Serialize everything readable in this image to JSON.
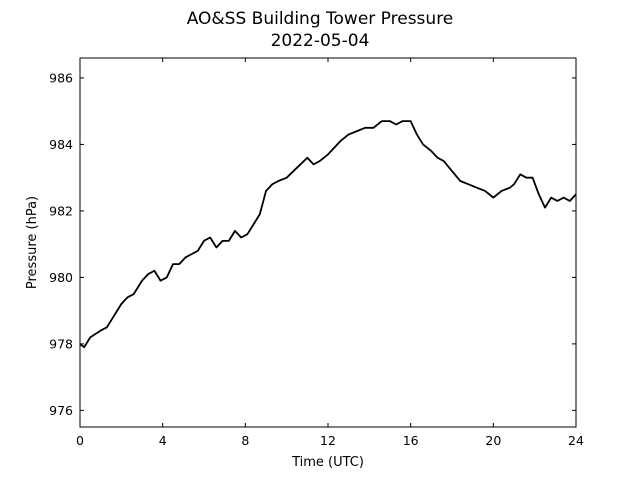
{
  "chart_data": {
    "type": "line",
    "title": "AO&SS Building Tower Pressure",
    "subtitle": "2022-05-04",
    "xlabel": "Time (UTC)",
    "ylabel": "Pressure (hPa)",
    "xlim": [
      0,
      24
    ],
    "ylim": [
      975.5,
      986.6
    ],
    "xticks": [
      0,
      4,
      8,
      12,
      16,
      20,
      24
    ],
    "yticks": [
      976,
      978,
      980,
      982,
      984,
      986
    ],
    "grid": false,
    "line_color": "#000000",
    "series": [
      {
        "x": [
          0,
          0.2,
          0.5,
          1,
          1.3,
          1.6,
          2,
          2.3,
          2.6,
          3,
          3.3,
          3.6,
          3.9,
          4.2,
          4.5,
          4.8,
          5.1,
          5.4,
          5.7,
          6,
          6.3,
          6.6,
          6.9,
          7.2,
          7.5,
          7.8,
          8.1,
          8.4,
          8.7,
          9.0,
          9.3,
          9.6,
          10.0,
          10.5,
          11.0,
          11.3,
          11.6,
          12.0,
          12.3,
          12.6,
          13.0,
          13.4,
          13.8,
          14.2,
          14.6,
          15.0,
          15.3,
          15.6,
          16.0,
          16.3,
          16.6,
          17.0,
          17.3,
          17.6,
          18.0,
          18.4,
          18.8,
          19.2,
          19.6,
          20.0,
          20.4,
          20.8,
          21.0,
          21.3,
          21.6,
          21.9,
          22.2,
          22.5,
          22.8,
          23.1,
          23.4,
          23.7,
          24.0
        ],
        "y": [
          978.0,
          977.9,
          978.2,
          978.4,
          978.5,
          978.8,
          979.2,
          979.4,
          979.5,
          979.9,
          980.1,
          980.2,
          979.9,
          980.0,
          980.4,
          980.4,
          980.6,
          980.7,
          980.8,
          981.1,
          981.2,
          980.9,
          981.1,
          981.1,
          981.4,
          981.2,
          981.3,
          981.6,
          981.9,
          982.6,
          982.8,
          982.9,
          983.0,
          983.3,
          983.6,
          983.4,
          983.5,
          983.7,
          983.9,
          984.1,
          984.3,
          984.4,
          984.5,
          984.5,
          984.7,
          984.7,
          984.6,
          984.7,
          984.7,
          984.3,
          984.0,
          983.8,
          983.6,
          983.5,
          983.2,
          982.9,
          982.8,
          982.7,
          982.6,
          982.4,
          982.6,
          982.7,
          982.8,
          983.1,
          983.0,
          983.0,
          982.5,
          982.1,
          982.4,
          982.3,
          982.4,
          982.3,
          982.5
        ]
      }
    ]
  }
}
